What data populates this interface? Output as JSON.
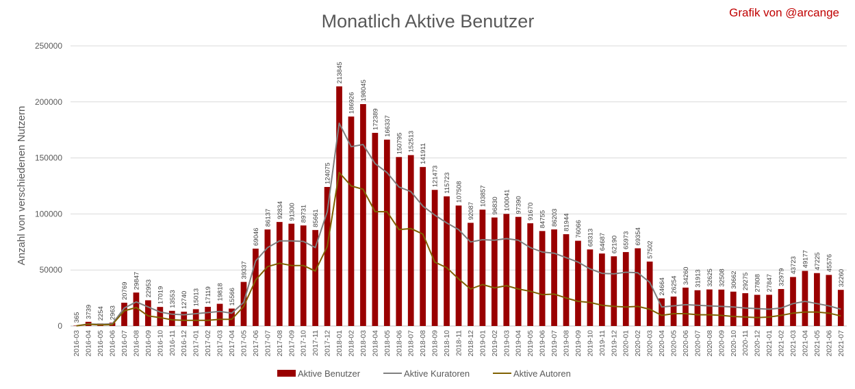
{
  "chart_data": {
    "type": "bar",
    "title": "Monatlich Aktive Benutzer",
    "credit": "Grafik von @arcange",
    "ylabel": "Anzahl von verschiedenen Nutzern",
    "xlabel": "",
    "ylim": [
      0,
      250000
    ],
    "yticks": [
      0,
      50000,
      100000,
      150000,
      200000,
      250000
    ],
    "grid": true,
    "legend_position": "bottom",
    "colors": {
      "bars": "#990000",
      "kuratoren": "#7f7f7f",
      "autoren": "#7f6000"
    },
    "categories": [
      "2016-03",
      "2016-04",
      "2016-05",
      "2016-06",
      "2016-07",
      "2016-08",
      "2016-09",
      "2016-10",
      "2016-11",
      "2016-12",
      "2017-01",
      "2017-02",
      "2017-03",
      "2017-04",
      "2017-05",
      "2017-06",
      "2017-07",
      "2017-08",
      "2017-09",
      "2017-10",
      "2017-11",
      "2017-12",
      "2018-01",
      "2018-02",
      "2018-03",
      "2018-04",
      "2018-05",
      "2018-06",
      "2018-07",
      "2018-08",
      "2018-09",
      "2018-10",
      "2018-11",
      "2018-12",
      "2019-01",
      "2019-02",
      "2019-03",
      "2019-04",
      "2019-05",
      "2019-06",
      "2019-07",
      "2019-08",
      "2019-09",
      "2019-10",
      "2019-11",
      "2019-12",
      "2020-01",
      "2020-02",
      "2020-03",
      "2020-04",
      "2020-05",
      "2020-06",
      "2020-07",
      "2020-08",
      "2020-09",
      "2020-10",
      "2020-11",
      "2020-12",
      "2021-01",
      "2021-02",
      "2021-03",
      "2021-04",
      "2021-05",
      "2021-06",
      "2021-07"
    ],
    "series": [
      {
        "name": "Aktive Benutzer",
        "kind": "bar",
        "values": [
          365,
          3739,
          2254,
          2963,
          20769,
          29847,
          22953,
          17019,
          13553,
          12740,
          15013,
          17119,
          19818,
          15566,
          39337,
          69046,
          86137,
          92834,
          91300,
          89731,
          85661,
          124075,
          213845,
          186926,
          198045,
          172389,
          166337,
          150795,
          152513,
          141911,
          121473,
          115723,
          107508,
          92087,
          103857,
          96830,
          100041,
          97390,
          91670,
          84755,
          86203,
          81944,
          76066,
          68313,
          64687,
          62190,
          65973,
          69354,
          57502,
          24664,
          26254,
          34260,
          31913,
          32625,
          32508,
          30662,
          29275,
          27808,
          27847,
          32979,
          43723,
          49177,
          47225,
          45576,
          32260
        ]
      },
      {
        "name": "Aktive Kuratoren",
        "kind": "line",
        "values": [
          200,
          1800,
          1500,
          1900,
          16000,
          21500,
          17000,
          12500,
          10500,
          10000,
          11000,
          12000,
          13000,
          11500,
          21000,
          58000,
          70000,
          76000,
          76000,
          75500,
          70000,
          102000,
          181000,
          160000,
          162000,
          145000,
          137000,
          124000,
          120000,
          107000,
          99000,
          92000,
          86000,
          75000,
          77000,
          76500,
          78000,
          76500,
          70000,
          66000,
          65000,
          61000,
          57000,
          51000,
          47000,
          46500,
          48000,
          47500,
          39000,
          17000,
          18000,
          19000,
          18500,
          18000,
          17500,
          17000,
          16000,
          15500,
          15000,
          16000,
          20000,
          22000,
          20000,
          18000,
          15000
        ]
      },
      {
        "name": "Aktive Autoren",
        "kind": "line",
        "values": [
          100,
          1500,
          1000,
          1200,
          13500,
          16500,
          9000,
          7500,
          5500,
          5000,
          5000,
          5000,
          6000,
          6000,
          17500,
          41000,
          53000,
          56000,
          54000,
          54000,
          49000,
          71000,
          137000,
          125000,
          122000,
          102000,
          102000,
          86000,
          87000,
          82000,
          57000,
          52000,
          42000,
          33000,
          37000,
          34000,
          36000,
          33000,
          31000,
          28000,
          28500,
          25000,
          22000,
          21000,
          18500,
          17500,
          17000,
          17500,
          15000,
          9500,
          11000,
          11000,
          10000,
          10000,
          9500,
          8500,
          8000,
          7500,
          8000,
          9500,
          11500,
          12500,
          12500,
          11500,
          9000
        ]
      }
    ]
  }
}
